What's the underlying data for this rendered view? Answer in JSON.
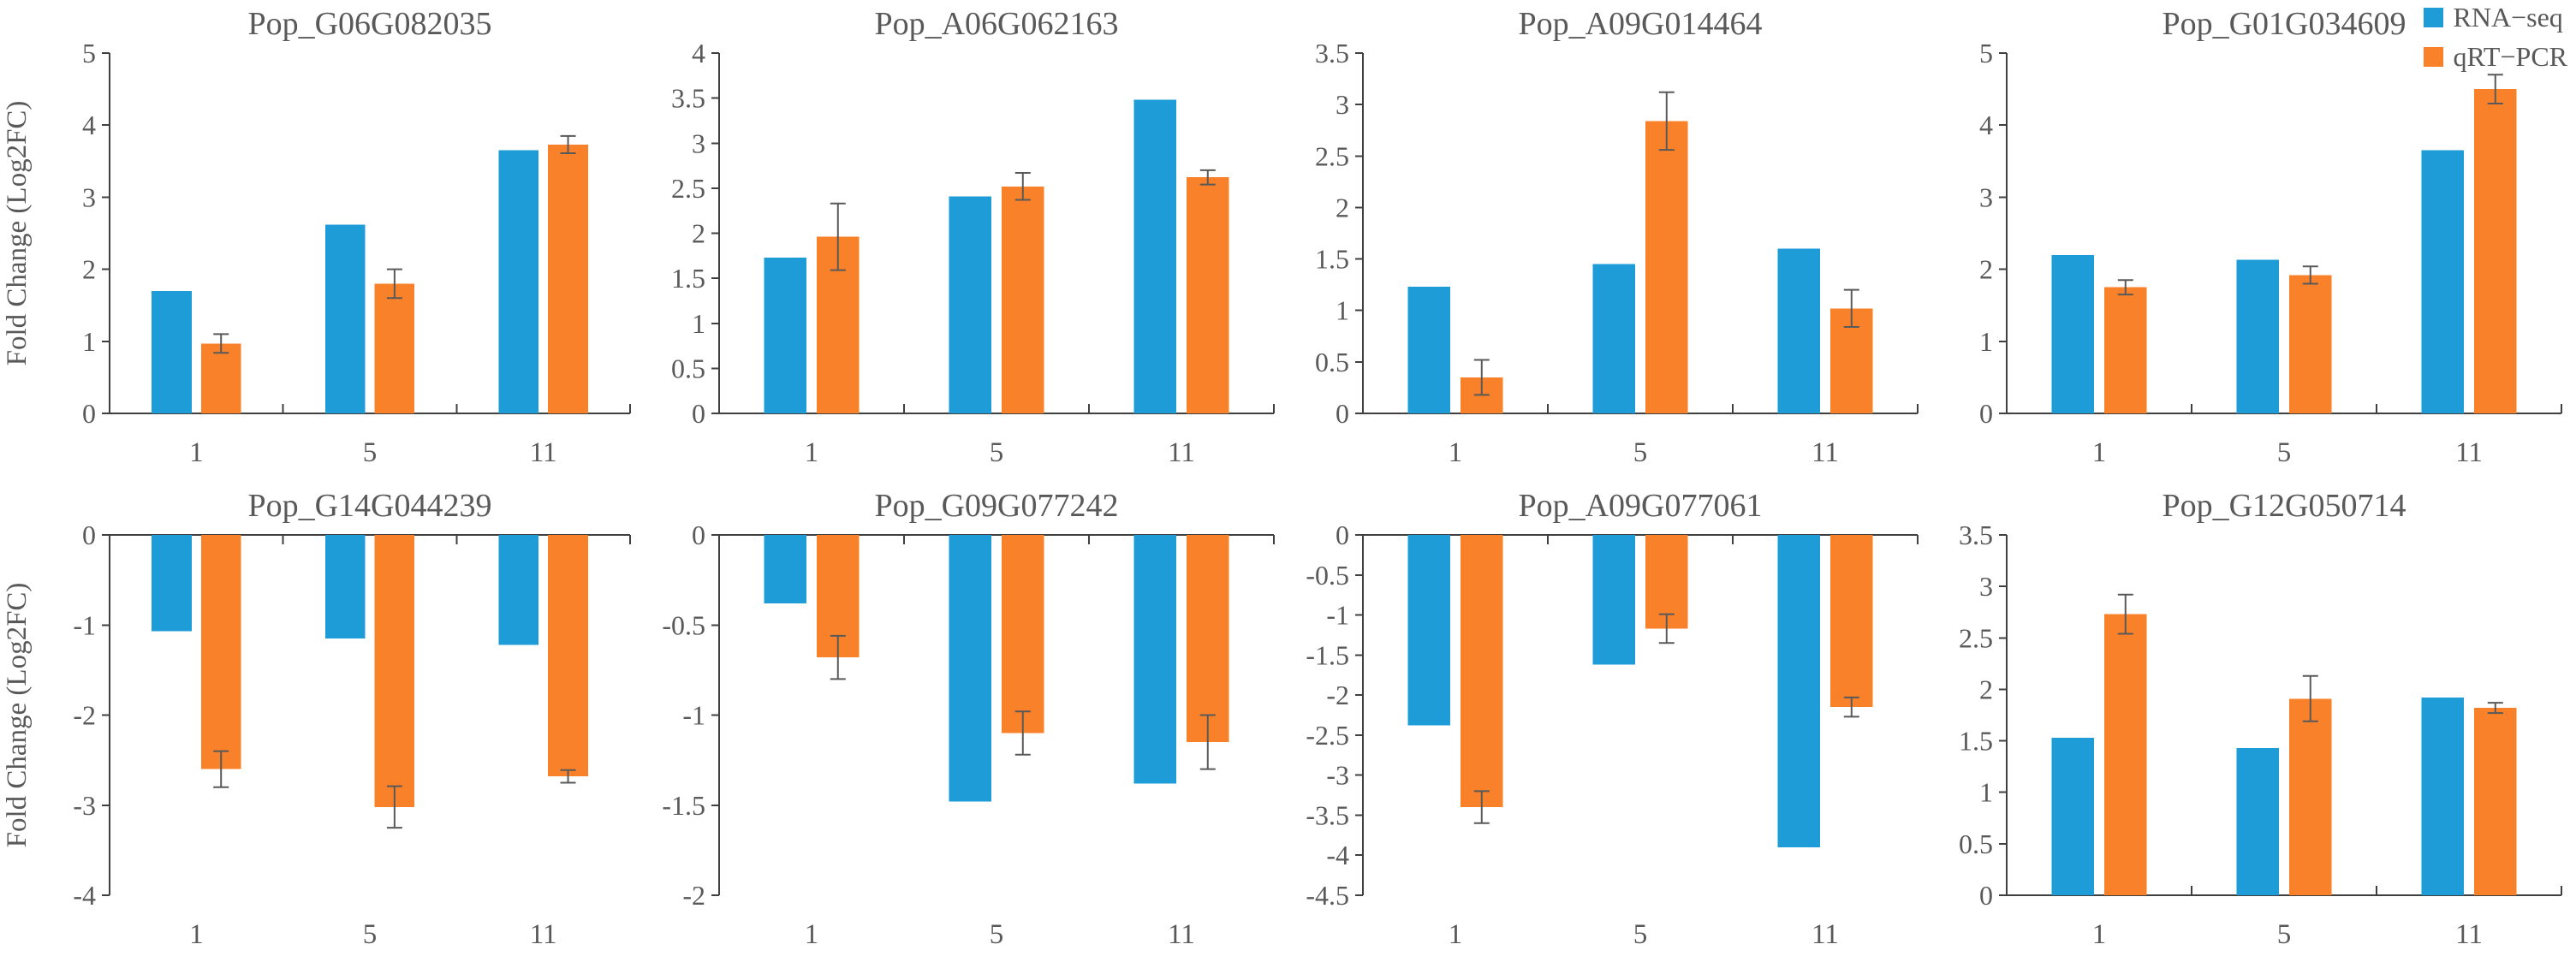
{
  "colors": {
    "rna_seq": "#1E9CD7",
    "qrt_pcr": "#F9812A",
    "text": "#595959",
    "axis": "#404040",
    "error_bar": "#595959"
  },
  "legend": {
    "items": [
      {
        "label": "RNA−seq",
        "color": "#1E9CD7"
      },
      {
        "label": "qRT−PCR",
        "color": "#F9812A"
      }
    ]
  },
  "chart_data": [
    {
      "type": "bar",
      "title": "Pop_G06G082035",
      "ylabel": "Fold Change (Log2FC)",
      "categories": [
        "1",
        "5",
        "11"
      ],
      "ylim": [
        0,
        5
      ],
      "ytick_step": 1,
      "grid": false,
      "series": [
        {
          "name": "RNA−seq",
          "values": [
            1.7,
            2.62,
            3.65
          ]
        },
        {
          "name": "qRT−PCR",
          "values": [
            0.97,
            1.8,
            3.73
          ],
          "errors": [
            0.13,
            0.2,
            0.12
          ]
        }
      ]
    },
    {
      "type": "bar",
      "title": "Pop_A06G062163",
      "ylabel": "",
      "categories": [
        "1",
        "5",
        "11"
      ],
      "ylim": [
        0,
        4
      ],
      "ytick_step": 0.5,
      "grid": false,
      "series": [
        {
          "name": "RNA−seq",
          "values": [
            1.73,
            2.41,
            3.48
          ]
        },
        {
          "name": "qRT−PCR",
          "values": [
            1.96,
            2.52,
            2.62
          ],
          "errors": [
            0.37,
            0.15,
            0.08
          ]
        }
      ]
    },
    {
      "type": "bar",
      "title": "Pop_A09G014464",
      "ylabel": "",
      "categories": [
        "1",
        "5",
        "11"
      ],
      "ylim": [
        0,
        3.5
      ],
      "ytick_step": 0.5,
      "grid": false,
      "series": [
        {
          "name": "RNA−seq",
          "values": [
            1.23,
            1.45,
            1.6
          ]
        },
        {
          "name": "qRT−PCR",
          "values": [
            0.35,
            2.84,
            1.02
          ],
          "errors": [
            0.17,
            0.28,
            0.18
          ]
        }
      ]
    },
    {
      "type": "bar",
      "title": "Pop_G01G034609",
      "ylabel": "",
      "categories": [
        "1",
        "5",
        "11"
      ],
      "ylim": [
        0,
        5
      ],
      "ytick_step": 1,
      "grid": false,
      "series": [
        {
          "name": "RNA−seq",
          "values": [
            2.2,
            2.13,
            3.65
          ]
        },
        {
          "name": "qRT−PCR",
          "values": [
            1.75,
            1.92,
            4.5
          ],
          "errors": [
            0.1,
            0.12,
            0.2
          ]
        }
      ]
    },
    {
      "type": "bar",
      "title": "Pop_G14G044239",
      "ylabel": "Fold Change (Log2FC)",
      "categories": [
        "1",
        "5",
        "11"
      ],
      "ylim": [
        -4,
        0
      ],
      "ytick_step": 1,
      "grid": false,
      "series": [
        {
          "name": "RNA−seq",
          "values": [
            -1.07,
            -1.15,
            -1.22
          ]
        },
        {
          "name": "qRT−PCR",
          "values": [
            -2.6,
            -3.02,
            -2.68
          ],
          "errors": [
            0.2,
            0.23,
            0.07
          ]
        }
      ]
    },
    {
      "type": "bar",
      "title": "Pop_G09G077242",
      "ylabel": "",
      "categories": [
        "1",
        "5",
        "11"
      ],
      "ylim": [
        -2,
        0
      ],
      "ytick_step": 0.5,
      "grid": false,
      "series": [
        {
          "name": "RNA−seq",
          "values": [
            -0.38,
            -1.48,
            -1.38
          ]
        },
        {
          "name": "qRT−PCR",
          "values": [
            -0.68,
            -1.1,
            -1.15
          ],
          "errors": [
            0.12,
            0.12,
            0.15
          ]
        }
      ]
    },
    {
      "type": "bar",
      "title": "Pop_A09G077061",
      "ylabel": "",
      "categories": [
        "1",
        "5",
        "11"
      ],
      "ylim": [
        -4.5,
        0
      ],
      "ytick_step": 0.5,
      "grid": false,
      "series": [
        {
          "name": "RNA−seq",
          "values": [
            -2.38,
            -1.62,
            -3.9
          ]
        },
        {
          "name": "qRT−PCR",
          "values": [
            -3.4,
            -1.17,
            -2.15
          ],
          "errors": [
            0.2,
            0.18,
            0.12
          ]
        }
      ]
    },
    {
      "type": "bar",
      "title": "Pop_G12G050714",
      "ylabel": "",
      "categories": [
        "1",
        "5",
        "11"
      ],
      "ylim": [
        0,
        3.5
      ],
      "ytick_step": 0.5,
      "grid": false,
      "series": [
        {
          "name": "RNA−seq",
          "values": [
            1.53,
            1.43,
            1.92
          ]
        },
        {
          "name": "qRT−PCR",
          "values": [
            2.73,
            1.91,
            1.82
          ],
          "errors": [
            0.19,
            0.22,
            0.05
          ]
        }
      ]
    }
  ]
}
